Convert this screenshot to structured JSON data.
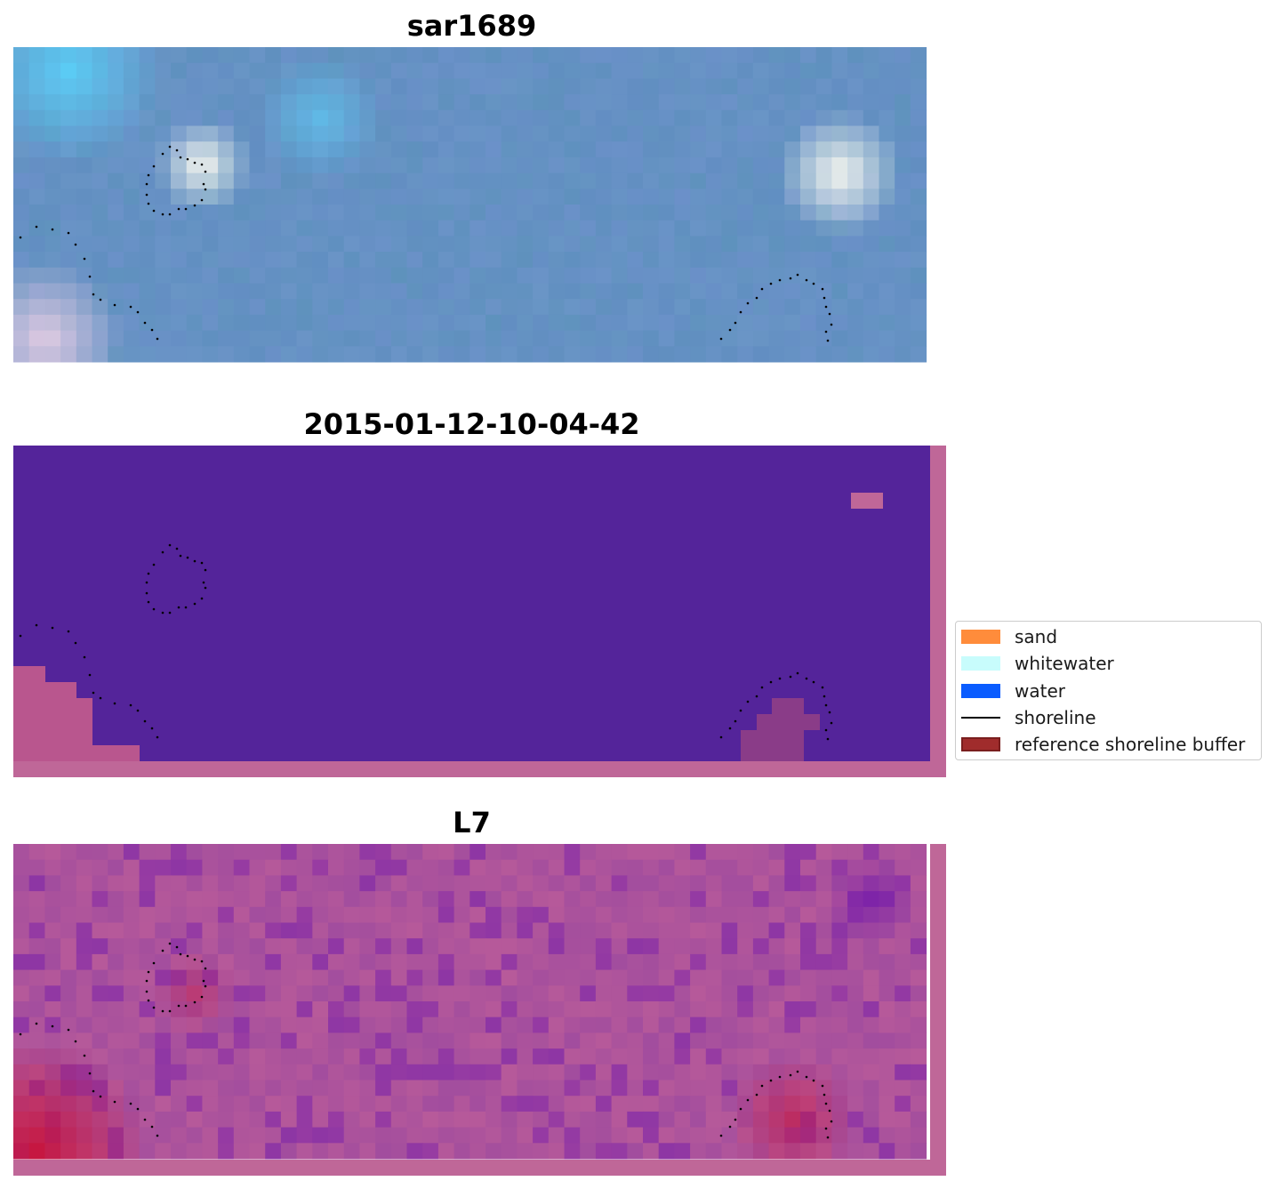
{
  "panels": [
    {
      "title": "sar1689",
      "kind": "rgb"
    },
    {
      "title": "2015-01-12-10-04-42",
      "kind": "classification"
    },
    {
      "title": "L7",
      "kind": "index"
    }
  ],
  "legend": {
    "items": [
      {
        "label": "sand",
        "color": "#ff8c3b",
        "type": "patch"
      },
      {
        "label": "whitewater",
        "color": "#c8fcfc",
        "type": "patch"
      },
      {
        "label": "water",
        "color": "#0a5cff",
        "type": "patch"
      },
      {
        "label": "shoreline",
        "color": "#000000",
        "type": "line"
      },
      {
        "label": "reference shoreline buffer",
        "color": "#a02c2c",
        "type": "patch"
      }
    ]
  },
  "colors": {
    "rgb_base": "#6a95c6",
    "classification_background": "#54249a",
    "buffer_overlay": "#bf6798",
    "index_base": "#a24d9e"
  }
}
